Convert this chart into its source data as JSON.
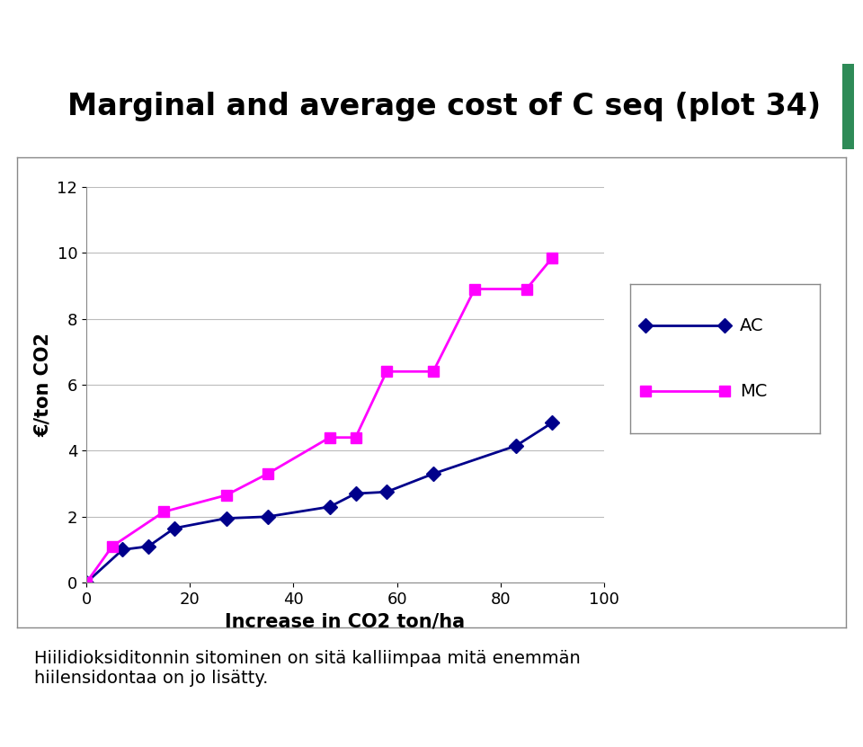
{
  "title": "Marginal and average cost of C seq (plot 34)",
  "xlabel": "Increase in CO2 ton/ha",
  "ylabel": "€/ton CO2",
  "footnote": "Hiilidioksiditonnin sitominen on sitä kalliimpaa mitä enemmän\nhiilensidontaa on jo lisätty.",
  "AC_x": [
    0,
    7,
    12,
    17,
    27,
    35,
    47,
    52,
    58,
    67,
    83,
    90
  ],
  "AC_y": [
    0.0,
    1.0,
    1.1,
    1.65,
    1.95,
    2.0,
    2.3,
    2.7,
    2.75,
    3.3,
    4.15,
    4.85
  ],
  "MC_x": [
    0,
    5,
    15,
    27,
    35,
    47,
    52,
    58,
    67,
    75,
    85,
    90
  ],
  "MC_y": [
    0.0,
    1.1,
    2.15,
    2.65,
    3.3,
    4.4,
    4.4,
    6.4,
    6.4,
    8.9,
    8.9,
    9.85
  ],
  "AC_color": "#00008B",
  "MC_color": "#FF00FF",
  "xlim": [
    0,
    100
  ],
  "ylim": [
    0,
    12
  ],
  "yticks": [
    0,
    2,
    4,
    6,
    8,
    10,
    12
  ],
  "xticks": [
    0,
    20,
    40,
    60,
    80,
    100
  ],
  "title_bar_color": "#2e8b57",
  "title_bg_color": "#dff0e8",
  "chart_border_color": "#888888",
  "outer_bg": "#ffffff",
  "title_fontsize": 24,
  "axis_label_fontsize": 15,
  "tick_fontsize": 13,
  "legend_fontsize": 14,
  "footnote_fontsize": 14
}
